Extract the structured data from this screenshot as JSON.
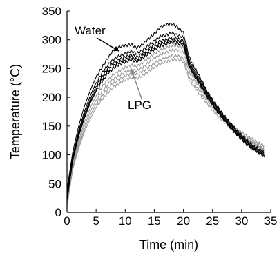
{
  "chart_data": {
    "type": "line",
    "title": "",
    "xlabel": "Time (min)",
    "ylabel": "Temperature (°C)",
    "xlim": [
      0,
      35
    ],
    "ylim": [
      0,
      350
    ],
    "xticks": [
      0,
      5,
      10,
      15,
      20,
      25,
      30,
      35
    ],
    "yticks": [
      0,
      50,
      100,
      150,
      200,
      250,
      300,
      350
    ],
    "grid": false,
    "legend": "none",
    "annotations": [
      {
        "text": "Water",
        "points_to_x": 9,
        "points_to_y": 280
      },
      {
        "text": "LPG",
        "points_to_x": 11,
        "points_to_y": 250
      }
    ],
    "series": [
      {
        "group": "Water",
        "color": "#000000",
        "x": [
          0,
          1,
          2,
          3,
          4,
          5,
          6,
          7,
          8,
          9,
          10,
          11,
          12,
          13,
          14,
          15,
          16,
          17,
          18,
          19,
          20,
          21,
          22,
          23,
          24,
          25,
          26,
          27,
          28,
          29,
          30,
          31,
          32,
          33,
          34
        ],
        "y": [
          40,
          105,
          150,
          185,
          212,
          235,
          252,
          268,
          282,
          288,
          290,
          292,
          286,
          292,
          302,
          310,
          322,
          326,
          328,
          322,
          312,
          270,
          250,
          232,
          212,
          196,
          182,
          168,
          156,
          145,
          134,
          124,
          116,
          110,
          104
        ]
      },
      {
        "group": "Water",
        "color": "#000000",
        "x": [
          0,
          1,
          2,
          3,
          4,
          5,
          6,
          7,
          8,
          9,
          10,
          11,
          12,
          13,
          14,
          15,
          16,
          17,
          18,
          19,
          20,
          21,
          22,
          23,
          24,
          25,
          26,
          27,
          28,
          29,
          30,
          31,
          32,
          33,
          34
        ],
        "y": [
          35,
          98,
          142,
          176,
          203,
          225,
          242,
          256,
          266,
          272,
          276,
          280,
          276,
          282,
          290,
          298,
          306,
          308,
          312,
          308,
          304,
          264,
          245,
          228,
          210,
          194,
          180,
          166,
          154,
          143,
          132,
          122,
          114,
          108,
          102
        ]
      },
      {
        "group": "Water",
        "color": "#000000",
        "x": [
          0,
          1,
          2,
          3,
          4,
          5,
          6,
          7,
          8,
          9,
          10,
          11,
          12,
          13,
          14,
          15,
          16,
          17,
          18,
          19,
          20,
          21,
          22,
          23,
          24,
          25,
          26,
          27,
          28,
          29,
          30,
          31,
          32,
          33,
          34
        ],
        "y": [
          30,
          95,
          138,
          171,
          197,
          219,
          236,
          250,
          260,
          266,
          270,
          274,
          270,
          276,
          284,
          292,
          298,
          300,
          304,
          302,
          298,
          260,
          241,
          224,
          207,
          191,
          177,
          163,
          151,
          140,
          130,
          120,
          112,
          106,
          100
        ]
      },
      {
        "group": "Water",
        "color": "#000000",
        "x": [
          0,
          1,
          2,
          3,
          4,
          5,
          6,
          7,
          8,
          9,
          10,
          11,
          12,
          13,
          14,
          15,
          16,
          17,
          18,
          19,
          20,
          21,
          22,
          23,
          24,
          25,
          26,
          27,
          28,
          29,
          30,
          31,
          32,
          33,
          34
        ],
        "y": [
          25,
          92,
          135,
          167,
          193,
          214,
          231,
          245,
          255,
          261,
          265,
          269,
          266,
          272,
          280,
          287,
          293,
          296,
          300,
          298,
          294,
          256,
          238,
          221,
          204,
          188,
          174,
          161,
          149,
          138,
          128,
          118,
          110,
          104,
          98
        ]
      },
      {
        "group": "Water",
        "color": "#000000",
        "x": [
          0,
          1,
          2,
          3,
          4,
          5,
          6,
          7,
          8,
          9,
          10,
          11,
          12,
          13,
          14,
          15,
          16,
          17,
          18,
          19,
          20,
          21,
          22,
          23,
          24,
          25,
          26,
          27,
          28,
          29,
          30,
          31,
          32,
          33,
          34
        ],
        "y": [
          20,
          90,
          132,
          164,
          190,
          210,
          227,
          241,
          251,
          257,
          261,
          265,
          262,
          268,
          276,
          283,
          289,
          292,
          296,
          294,
          291,
          253,
          236,
          219,
          202,
          187,
          173,
          160,
          148,
          137,
          127,
          117,
          109,
          103,
          96
        ]
      },
      {
        "group": "LPG",
        "color": "#999999",
        "x": [
          0,
          1,
          2,
          3,
          4,
          5,
          6,
          7,
          8,
          9,
          10,
          11,
          12,
          13,
          14,
          15,
          16,
          17,
          18,
          19,
          20,
          21,
          22,
          23,
          24,
          25,
          26,
          27,
          28,
          29,
          30,
          31,
          32,
          33,
          34
        ],
        "y": [
          25,
          85,
          125,
          157,
          182,
          202,
          218,
          230,
          240,
          246,
          252,
          256,
          254,
          260,
          268,
          276,
          282,
          286,
          290,
          290,
          286,
          250,
          234,
          219,
          204,
          190,
          177,
          165,
          154,
          144,
          135,
          127,
          120,
          114,
          108
        ]
      },
      {
        "group": "LPG",
        "color": "#999999",
        "x": [
          0,
          1,
          2,
          3,
          4,
          5,
          6,
          7,
          8,
          9,
          10,
          11,
          12,
          13,
          14,
          15,
          16,
          17,
          18,
          19,
          20,
          21,
          22,
          23,
          24,
          25,
          26,
          27,
          28,
          29,
          30,
          31,
          32,
          33,
          34
        ],
        "y": [
          20,
          82,
          120,
          151,
          175,
          195,
          210,
          222,
          232,
          238,
          244,
          248,
          246,
          252,
          260,
          268,
          274,
          278,
          282,
          282,
          278,
          244,
          229,
          215,
          201,
          188,
          176,
          165,
          155,
          146,
          138,
          130,
          124,
          118,
          112
        ]
      },
      {
        "group": "LPG",
        "color": "#999999",
        "x": [
          0,
          1,
          2,
          3,
          4,
          5,
          6,
          7,
          8,
          9,
          10,
          11,
          12,
          13,
          14,
          15,
          16,
          17,
          18,
          19,
          20,
          21,
          22,
          23,
          24,
          25,
          26,
          27,
          28,
          29,
          30,
          31,
          32,
          33,
          34
        ],
        "y": [
          15,
          78,
          115,
          145,
          169,
          188,
          203,
          215,
          225,
          231,
          237,
          241,
          240,
          245,
          252,
          259,
          265,
          269,
          272,
          272,
          268,
          236,
          222,
          209,
          196,
          184,
          173,
          163,
          154,
          146,
          139,
          132,
          126,
          120,
          115
        ]
      },
      {
        "group": "LPG",
        "color": "#999999",
        "x": [
          0,
          1,
          2,
          3,
          4,
          5,
          6,
          7,
          8,
          9,
          10,
          11,
          12,
          13,
          14,
          15,
          16,
          17,
          18,
          19,
          20,
          21,
          22,
          23,
          24,
          25,
          26,
          27,
          28,
          29,
          30,
          31,
          32,
          33,
          34
        ],
        "y": [
          10,
          75,
          111,
          140,
          163,
          182,
          196,
          208,
          218,
          224,
          230,
          234,
          233,
          238,
          245,
          252,
          258,
          262,
          265,
          266,
          262,
          230,
          216,
          203,
          190,
          178,
          167,
          157,
          148,
          140,
          133,
          126,
          120,
          114,
          109
        ]
      }
    ]
  }
}
